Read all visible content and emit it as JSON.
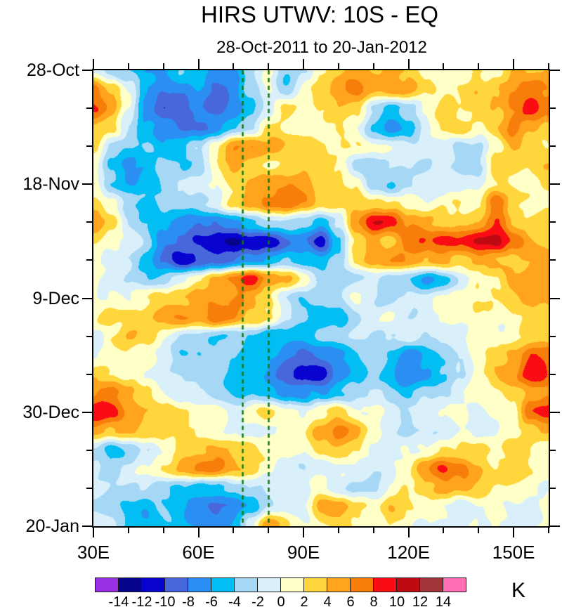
{
  "title": "HIRS UTWV: 10S - EQ",
  "subtitle": "28-Oct-2011 to 20-Jan-2012",
  "unit_label": "K",
  "chart_data": {
    "type": "heatmap",
    "title": "HIRS UTWV: 10S - EQ",
    "subtitle": "28-Oct-2011 to 20-Jan-2012",
    "x_axis": {
      "label_units": "degrees longitude east",
      "range": [
        30,
        160
      ],
      "major_tick_lons": [
        30,
        60,
        90,
        120,
        150
      ],
      "major_tick_labels": [
        "30E",
        "60E",
        "90E",
        "120E",
        "150E"
      ],
      "minor_tick_lons": [
        40,
        50,
        70,
        80,
        100,
        110,
        130,
        140,
        160
      ]
    },
    "y_axis": {
      "label_units": "date, increasing downward",
      "range_days": [
        0,
        84
      ],
      "major_tick_days": [
        0,
        21,
        42,
        63,
        84
      ],
      "major_tick_labels": [
        "28-Oct",
        "18-Nov",
        "9-Dec",
        "30-Dec",
        "20-Jan"
      ],
      "minor_tick_days": [
        7,
        14,
        28,
        35,
        49,
        56,
        70,
        77
      ]
    },
    "colorbar": {
      "unit": "K",
      "boundary_labels": [
        "-14",
        "-12",
        "-10",
        "-8",
        "-6",
        "-4",
        "-2",
        "0",
        "2",
        "4",
        "6",
        "8",
        "10",
        "12",
        "14"
      ],
      "levels": [
        -14,
        -12,
        -10,
        -8,
        -6,
        -4,
        -2,
        0,
        2,
        4,
        6,
        8,
        10,
        12,
        14
      ],
      "colors": [
        "#9B30E2",
        "#05058C",
        "#0903CF",
        "#4767DB",
        "#2B8EF2",
        "#02BEF2",
        "#A6D8F6",
        "#D9F0FB",
        "#FFFFC8",
        "#FFD63C",
        "#FFA41C",
        "#F87E0B",
        "#FA0C15",
        "#BE0A12",
        "#A2353C",
        "#FF6EB4"
      ]
    },
    "reference_lines": {
      "lons": [
        72.5,
        80
      ],
      "color": "#117611",
      "style": "dashed"
    },
    "grid": {
      "description": "UTWV brightness-temperature anomaly (K), rows = time from 28-Oct-2011 (top) to 20-Jan-2012 (bottom), cols = longitude 30E to 160E",
      "lon_start": 30,
      "lon_step": 5,
      "day_start": 0,
      "day_step": 3.5,
      "values_K": [
        [
          -1,
          -3,
          -4,
          -6,
          -6,
          -4,
          -5,
          -7,
          -6,
          -2,
          1,
          -4,
          -2,
          2,
          4,
          5,
          4,
          5,
          4,
          2,
          1,
          1,
          2,
          2,
          4,
          4,
          4
        ],
        [
          7,
          4,
          -1,
          -6,
          -8,
          -8,
          -6,
          -8,
          -7,
          -3,
          1,
          -4,
          0,
          3,
          5,
          6,
          5,
          6,
          5,
          3,
          2,
          2,
          3,
          4,
          5,
          7,
          6
        ],
        [
          9,
          5,
          0,
          -7,
          -9,
          -9,
          -7,
          -9,
          -7,
          -4,
          -1,
          3,
          1,
          2,
          4,
          3,
          -2,
          -5,
          -3,
          1,
          3,
          2,
          2,
          4,
          6,
          9,
          7
        ],
        [
          4,
          2,
          -2,
          -5,
          -7,
          -8,
          -8,
          -7,
          -5,
          -2,
          2,
          1,
          1,
          1,
          2,
          1,
          -4,
          -8,
          -5,
          -1,
          2,
          3,
          2,
          3,
          7,
          5,
          3
        ],
        [
          4,
          -3,
          -4,
          -4,
          -5,
          -4,
          -2,
          2,
          6,
          7,
          5,
          4,
          3,
          2,
          2,
          2,
          1,
          0,
          -1,
          0,
          -1,
          -3,
          -3,
          1,
          4,
          3,
          2
        ],
        [
          1,
          -5,
          -6,
          -5,
          -3,
          -4,
          -3,
          1,
          4,
          3,
          1,
          2,
          4,
          3,
          2,
          -2,
          -4,
          -3,
          -2,
          -3,
          -2,
          -3,
          -2,
          3,
          3,
          3,
          4
        ],
        [
          0,
          -4,
          -6,
          -5,
          -4,
          -2,
          -1,
          0,
          2,
          4,
          5,
          6,
          5,
          3,
          2,
          2,
          -3,
          -4,
          -2,
          -1,
          -2,
          -1,
          0,
          2,
          2,
          1,
          3
        ],
        [
          3,
          0,
          -3,
          -4,
          -3,
          -3,
          -2,
          -1,
          2,
          5,
          6,
          7,
          6,
          4,
          3,
          4,
          3,
          2,
          1,
          0,
          1,
          1,
          2,
          7,
          3,
          2,
          2
        ],
        [
          5,
          3,
          -2,
          -4,
          -6,
          -7,
          -8,
          -8,
          -7,
          -5,
          -3,
          -2,
          -3,
          -5,
          -2,
          6,
          10,
          9,
          6,
          4,
          3,
          3,
          5,
          8,
          4,
          3,
          3
        ],
        [
          2,
          1,
          -1,
          -3,
          -7,
          -9,
          -10,
          -11,
          -12,
          -12,
          -11,
          -9,
          -8,
          -11,
          -5,
          2,
          5,
          4,
          7,
          9,
          9,
          8,
          10,
          11,
          7,
          4,
          4
        ],
        [
          1,
          0,
          -2,
          -5,
          -9,
          -11,
          -10,
          -9,
          -8,
          -7,
          -5,
          -4,
          -5,
          -6,
          -3,
          2,
          5,
          6,
          5,
          4,
          5,
          3,
          4,
          4,
          3,
          4,
          5
        ],
        [
          0,
          -1,
          -3,
          -4,
          -3,
          -1,
          2,
          5,
          7,
          9,
          6,
          4,
          1,
          -3,
          -4,
          -3,
          -1,
          -2,
          -4,
          -6,
          -5,
          -2,
          1,
          2,
          4,
          5,
          6
        ],
        [
          1,
          1,
          0,
          2,
          3,
          4,
          5,
          6,
          6,
          5,
          3,
          -2,
          -4,
          -4,
          -2,
          0,
          -2,
          -3,
          -2,
          -1,
          1,
          2,
          1,
          2,
          3,
          5,
          4
        ],
        [
          2,
          3,
          3,
          3,
          5,
          7,
          5,
          7,
          6,
          4,
          2,
          -1,
          -3,
          -6,
          -5,
          -2,
          -1,
          0,
          -2,
          -1,
          0,
          1,
          2,
          1,
          2,
          3,
          2
        ],
        [
          -1,
          2,
          4,
          3,
          0,
          -2,
          -3,
          -4,
          -3,
          -4,
          -5,
          -5,
          -6,
          -4,
          -3,
          -2,
          -3,
          -2,
          -1,
          -2,
          -1,
          0,
          1,
          0,
          1,
          2,
          3
        ],
        [
          0,
          1,
          2,
          1,
          -1,
          -3,
          -4,
          -3,
          -4,
          -5,
          -6,
          -7,
          -8,
          -8,
          -6,
          -4,
          -3,
          -5,
          -7,
          -6,
          -4,
          -1,
          1,
          3,
          5,
          8,
          7
        ],
        [
          3,
          2,
          1,
          0,
          -2,
          -3,
          -3,
          -4,
          -5,
          -6,
          -7,
          -9,
          -11,
          -11,
          -8,
          -5,
          -4,
          -6,
          -8,
          -7,
          -4,
          -2,
          2,
          4,
          6,
          10,
          8
        ],
        [
          6,
          7,
          5,
          2,
          0,
          -1,
          -2,
          -3,
          -4,
          -4,
          -5,
          -6,
          -7,
          -6,
          -4,
          -3,
          -2,
          -3,
          -4,
          -3,
          -2,
          0,
          1,
          2,
          3,
          4,
          5
        ],
        [
          9,
          9,
          6,
          4,
          3,
          2,
          1,
          0,
          -1,
          1,
          2,
          1,
          0,
          2,
          3,
          1,
          0,
          -1,
          -2,
          -1,
          0,
          1,
          0,
          1,
          2,
          8,
          9
        ],
        [
          5,
          4,
          4,
          3,
          3,
          2,
          1,
          1,
          0,
          -1,
          0,
          1,
          1,
          5,
          7,
          4,
          1,
          -1,
          -2,
          -2,
          -1,
          0,
          -1,
          0,
          1,
          3,
          4
        ],
        [
          -2,
          -5,
          -4,
          -2,
          1,
          3,
          4,
          5,
          4,
          3,
          2,
          1,
          0,
          3,
          4,
          2,
          0,
          -1,
          0,
          1,
          2,
          2,
          2,
          2,
          3,
          2,
          1
        ],
        [
          -2,
          -3,
          -1,
          0,
          2,
          4,
          6,
          7,
          5,
          3,
          1,
          -1,
          -2,
          -1,
          0,
          -1,
          -2,
          0,
          2,
          6,
          9,
          7,
          4,
          3,
          3,
          2,
          1
        ],
        [
          -1,
          -2,
          -3,
          -2,
          -3,
          -4,
          -5,
          -4,
          -3,
          -2,
          -1,
          -2,
          -1,
          1,
          -1,
          -3,
          -2,
          1,
          2,
          4,
          5,
          4,
          3,
          2,
          1,
          1,
          0
        ],
        [
          -2,
          -3,
          -4,
          -5,
          -4,
          -5,
          -7,
          -9,
          -8,
          -5,
          -2,
          -1,
          0,
          5,
          6,
          3,
          1,
          3,
          2,
          1,
          0,
          -1,
          0,
          1,
          0,
          -1,
          0
        ],
        [
          -1,
          -2,
          -5,
          -5,
          -4,
          -5,
          -6,
          -7,
          -6,
          0,
          6,
          2,
          0,
          2,
          3,
          2,
          1,
          2,
          1,
          0,
          -1,
          -1,
          0,
          0,
          -1,
          0,
          1
        ]
      ]
    }
  }
}
